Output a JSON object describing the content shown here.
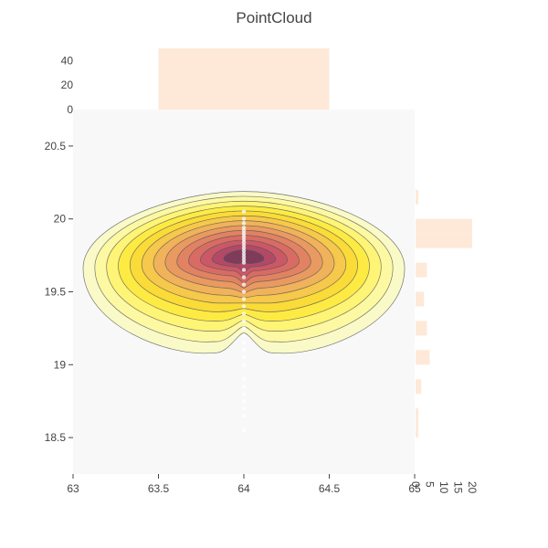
{
  "chart_data": {
    "type": "contour",
    "title": "PointCloud",
    "xlabel": "",
    "ylabel": "",
    "xlim": [
      63,
      65
    ],
    "ylim": [
      18.25,
      20.75
    ],
    "x_ticks": [
      "63",
      "63.5",
      "64",
      "64.5",
      "65"
    ],
    "y_ticks": [
      "18.5",
      "19",
      "19.5",
      "20",
      "20.5"
    ],
    "top_histogram": {
      "type": "bar",
      "orientation": "vertical",
      "bins": [
        {
          "x0": 63.5,
          "x1": 64.5,
          "count": 50
        }
      ],
      "ylim": [
        0,
        50
      ],
      "ticks": [
        "0",
        "20",
        "40"
      ]
    },
    "right_histogram": {
      "type": "bar",
      "orientation": "horizontal",
      "bins": [
        {
          "y0": 20.1,
          "y1": 20.2,
          "count": 1
        },
        {
          "y0": 19.9,
          "y1": 20.0,
          "count": 20
        },
        {
          "y0": 19.8,
          "y1": 19.9,
          "count": 20
        },
        {
          "y0": 19.6,
          "y1": 19.7,
          "count": 4
        },
        {
          "y0": 19.4,
          "y1": 19.5,
          "count": 3
        },
        {
          "y0": 19.2,
          "y1": 19.3,
          "count": 4
        },
        {
          "y0": 19.0,
          "y1": 19.1,
          "count": 5
        },
        {
          "y0": 18.8,
          "y1": 18.9,
          "count": 2
        },
        {
          "y0": 18.6,
          "y1": 18.7,
          "count": 1
        },
        {
          "y0": 18.5,
          "y1": 18.6,
          "count": 1
        }
      ],
      "xlim": [
        0,
        20
      ],
      "ticks": [
        "0",
        "5",
        "10",
        "15",
        "20"
      ]
    },
    "points": {
      "x": 64,
      "y": [
        20.05,
        20.0,
        19.97,
        19.94,
        19.92,
        19.9,
        19.88,
        19.86,
        19.84,
        19.82,
        19.8,
        19.78,
        19.76,
        19.74,
        19.72,
        19.7,
        19.65,
        19.6,
        19.55,
        19.5,
        19.45,
        19.4,
        19.35,
        19.3,
        19.25,
        19.2,
        19.15,
        19.1,
        19.05,
        19.0,
        18.9,
        18.85,
        18.8,
        18.75,
        18.7,
        18.65,
        18.55
      ]
    },
    "density_peak": {
      "x": 64,
      "y": 19.75
    },
    "contour_levels": 12,
    "colors": {
      "background": "#f8f8f8",
      "histogram": "#fee9d8",
      "contour_line": "#555555",
      "levels": [
        "#fafac8",
        "#fdf9a3",
        "#fef476",
        "#fdeb44",
        "#fadb38",
        "#f6c84b",
        "#f0b25a",
        "#e99a60",
        "#e18262",
        "#d86c64",
        "#cb5866",
        "#b24967",
        "#7f3b5a"
      ]
    }
  }
}
